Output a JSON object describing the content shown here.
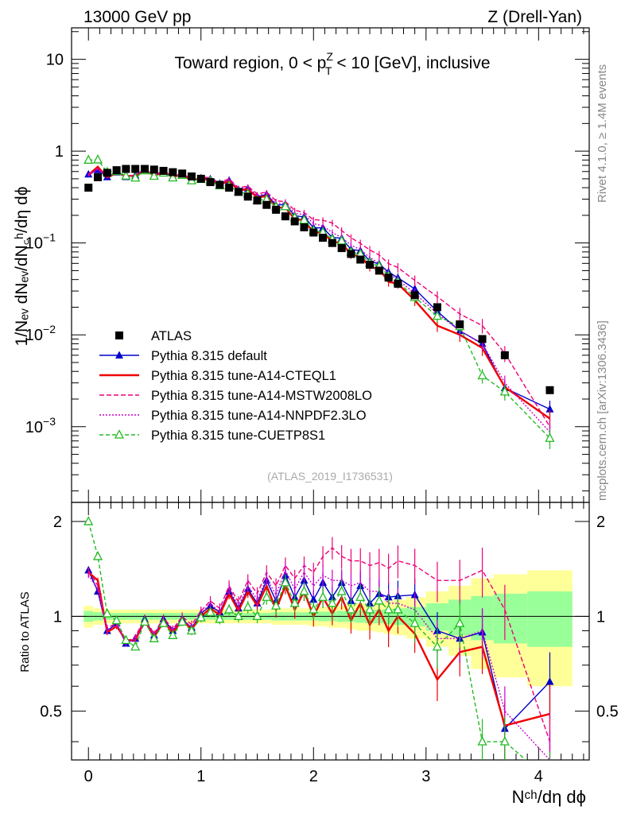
{
  "header": {
    "energy_label": "13000 GeV pp",
    "process_label": "Z (Drell-Yan)",
    "rivet_label": "Rivet 4.1.0, ≥ 1.4M events",
    "mcplots_label": "mcplots.cern.ch [arXiv:1306.3436]",
    "analysis_id": "(ATLAS_2019_I1736531)"
  },
  "top_panel": {
    "title_pre": "Toward region, 0 < p",
    "title_sup": "Z",
    "title_sub": "T",
    "title_post": " < 10 [GeV], inclusive",
    "ylabel": "1/Nₑᵥ dNₑᵥ/dN꜀ʰ/dη dϕ",
    "yticks": [
      {
        "pre": "10",
        "sup": "−3",
        "value": 0.001
      },
      {
        "pre": "10",
        "sup": "−2",
        "value": 0.01
      },
      {
        "pre": "10",
        "sup": "−1",
        "value": 0.1
      },
      {
        "pre": "1",
        "sup": "",
        "value": 1
      },
      {
        "pre": "10",
        "sup": "",
        "value": 10
      }
    ]
  },
  "bottom_panel": {
    "ylabel": "Ratio to ATLAS",
    "yticks": [
      {
        "label": "0.5",
        "value": 0.5
      },
      {
        "label": "1",
        "value": 1
      },
      {
        "label": "2",
        "value": 2
      }
    ]
  },
  "xaxis": {
    "label": "Nᶜʰ/dη dϕ",
    "ticks": [
      {
        "label": "0",
        "value": 0
      },
      {
        "label": "1",
        "value": 1
      },
      {
        "label": "2",
        "value": 2
      },
      {
        "label": "3",
        "value": 3
      },
      {
        "label": "4",
        "value": 4
      }
    ]
  },
  "legend": [
    {
      "label": "ATLAS",
      "color": "#000000",
      "marker": "square",
      "dash": ""
    },
    {
      "label": "Pythia 8.315 default",
      "color": "#0000cc",
      "marker": "triangle",
      "dash": ""
    },
    {
      "label": "Pythia 8.315 tune-A14-CTEQL1",
      "color": "#ee0000",
      "marker": "none",
      "dash": ""
    },
    {
      "label": "Pythia 8.315 tune-A14-MSTW2008LO",
      "color": "#ee0077",
      "marker": "none",
      "dash": "6,3"
    },
    {
      "label": "Pythia 8.315 tune-A14-NNPDF2.3LO",
      "color": "#cc00cc",
      "marker": "none",
      "dash": "2,2"
    },
    {
      "label": "Pythia 8.315 tune-CUETP8S1",
      "color": "#22bb22",
      "marker": "open-triangle",
      "dash": "5,3"
    }
  ],
  "chart_data": {
    "type": "scatter",
    "title": "Toward region, 0 < pT^Z < 10 [GeV], inclusive",
    "xlabel": "Nch/dη dϕ",
    "ylabel": "1/Nev dNev/dNch/dη dϕ",
    "ratio_ylabel": "Ratio to ATLAS",
    "xlim": [
      -0.15,
      4.45
    ],
    "ylim": [
      0.00015,
      22
    ],
    "yscale": "log",
    "ratio_ylim": [
      0.35,
      2.3
    ],
    "ratio_yscale": "log",
    "x": [
      0,
      0.0833,
      0.1667,
      0.25,
      0.3333,
      0.4167,
      0.5,
      0.5833,
      0.6667,
      0.75,
      0.8333,
      0.9167,
      1.0,
      1.0833,
      1.1667,
      1.25,
      1.3333,
      1.4167,
      1.5,
      1.5833,
      1.6667,
      1.75,
      1.8333,
      1.9167,
      2.0,
      2.0833,
      2.1667,
      2.25,
      2.3333,
      2.4167,
      2.5,
      2.5833,
      2.6667,
      2.75,
      2.9,
      3.1,
      3.3,
      3.5,
      3.7,
      4.1
    ],
    "data_band": {
      "yellow_halfwidth": [
        0.08,
        0.06,
        0.05,
        0.05,
        0.05,
        0.05,
        0.05,
        0.05,
        0.05,
        0.05,
        0.05,
        0.05,
        0.05,
        0.05,
        0.05,
        0.05,
        0.05,
        0.05,
        0.05,
        0.05,
        0.06,
        0.06,
        0.06,
        0.06,
        0.07,
        0.07,
        0.08,
        0.08,
        0.09,
        0.1,
        0.1,
        0.11,
        0.12,
        0.13,
        0.15,
        0.2,
        0.25,
        0.32,
        0.36,
        0.4
      ],
      "green_halfwidth": [
        0.04,
        0.03,
        0.025,
        0.025,
        0.025,
        0.025,
        0.025,
        0.025,
        0.025,
        0.025,
        0.025,
        0.025,
        0.025,
        0.025,
        0.025,
        0.025,
        0.025,
        0.025,
        0.025,
        0.025,
        0.03,
        0.03,
        0.03,
        0.03,
        0.03,
        0.035,
        0.035,
        0.04,
        0.04,
        0.045,
        0.05,
        0.05,
        0.055,
        0.06,
        0.07,
        0.1,
        0.13,
        0.16,
        0.18,
        0.2
      ]
    },
    "data": [
      0.4,
      0.52,
      0.58,
      0.62,
      0.64,
      0.64,
      0.64,
      0.63,
      0.61,
      0.59,
      0.57,
      0.53,
      0.5,
      0.46,
      0.43,
      0.4,
      0.36,
      0.32,
      0.29,
      0.26,
      0.23,
      0.195,
      0.172,
      0.148,
      0.13,
      0.114,
      0.1,
      0.088,
      0.076,
      0.066,
      0.058,
      0.05,
      0.042,
      0.036,
      0.027,
      0.02,
      0.013,
      0.009,
      0.006,
      0.0025
    ],
    "series": [
      {
        "name": "Pythia 8.315 default",
        "ratio": [
          1.4,
          1.2,
          0.9,
          0.95,
          0.82,
          0.85,
          0.98,
          0.87,
          0.98,
          0.9,
          0.98,
          0.92,
          1.02,
          1.08,
          1.03,
          1.2,
          1.06,
          1.22,
          1.1,
          1.3,
          1.12,
          1.35,
          1.15,
          1.3,
          1.13,
          1.28,
          1.15,
          1.28,
          1.12,
          1.25,
          1.1,
          1.18,
          1.15,
          1.16,
          1.17,
          0.9,
          0.85,
          0.89,
          0.44,
          0.62
        ]
      },
      {
        "name": "Pythia 8.315 tune-A14-CTEQL1",
        "ratio": [
          1.38,
          1.3,
          0.89,
          0.93,
          0.84,
          0.84,
          0.97,
          0.86,
          0.96,
          0.89,
          0.97,
          0.91,
          1.0,
          1.06,
          1.01,
          1.18,
          1.04,
          1.2,
          1.08,
          1.25,
          1.05,
          1.25,
          1.05,
          1.2,
          1.0,
          1.15,
          1.02,
          1.15,
          0.97,
          1.1,
          0.94,
          1.05,
          0.9,
          1.0,
          0.88,
          0.63,
          0.77,
          0.8,
          0.45,
          0.49
        ]
      },
      {
        "name": "Pythia 8.315 tune-A14-MSTW2008LO",
        "ratio": [
          1.4,
          1.25,
          0.92,
          0.95,
          0.83,
          0.86,
          0.99,
          0.88,
          0.99,
          0.91,
          1.0,
          0.94,
          1.04,
          1.12,
          1.06,
          1.25,
          1.11,
          1.3,
          1.18,
          1.38,
          1.25,
          1.45,
          1.32,
          1.45,
          1.38,
          1.55,
          1.65,
          1.55,
          1.5,
          1.5,
          1.45,
          1.48,
          1.42,
          1.5,
          1.45,
          1.3,
          1.3,
          1.4,
          1.05,
          0.4
        ]
      },
      {
        "name": "Pythia 8.315 tune-A14-NNPDF2.3LO",
        "ratio": [
          1.35,
          1.22,
          0.9,
          0.94,
          0.82,
          0.85,
          0.97,
          0.87,
          0.97,
          0.9,
          0.98,
          0.92,
          1.02,
          1.1,
          1.03,
          1.22,
          1.08,
          1.25,
          1.13,
          1.32,
          1.17,
          1.4,
          1.22,
          1.38,
          1.25,
          1.35,
          1.3,
          1.3,
          1.25,
          1.28,
          1.2,
          1.2,
          1.1,
          1.1,
          1.05,
          0.85,
          0.85,
          0.9,
          0.5,
          0.35
        ]
      },
      {
        "name": "Pythia 8.315 tune-CUETP8S1",
        "ratio": [
          2.0,
          1.55,
          1.02,
          0.97,
          0.84,
          0.8,
          0.96,
          0.85,
          0.95,
          0.87,
          0.96,
          0.9,
          0.99,
          1.03,
          0.98,
          1.05,
          1.0,
          1.07,
          1.0,
          1.15,
          1.08,
          1.28,
          1.1,
          1.2,
          1.05,
          1.15,
          1.1,
          1.2,
          1.05,
          1.15,
          1.05,
          1.12,
          1.05,
          1.05,
          0.95,
          0.8,
          0.95,
          0.4,
          0.4,
          0.3
        ]
      }
    ]
  }
}
